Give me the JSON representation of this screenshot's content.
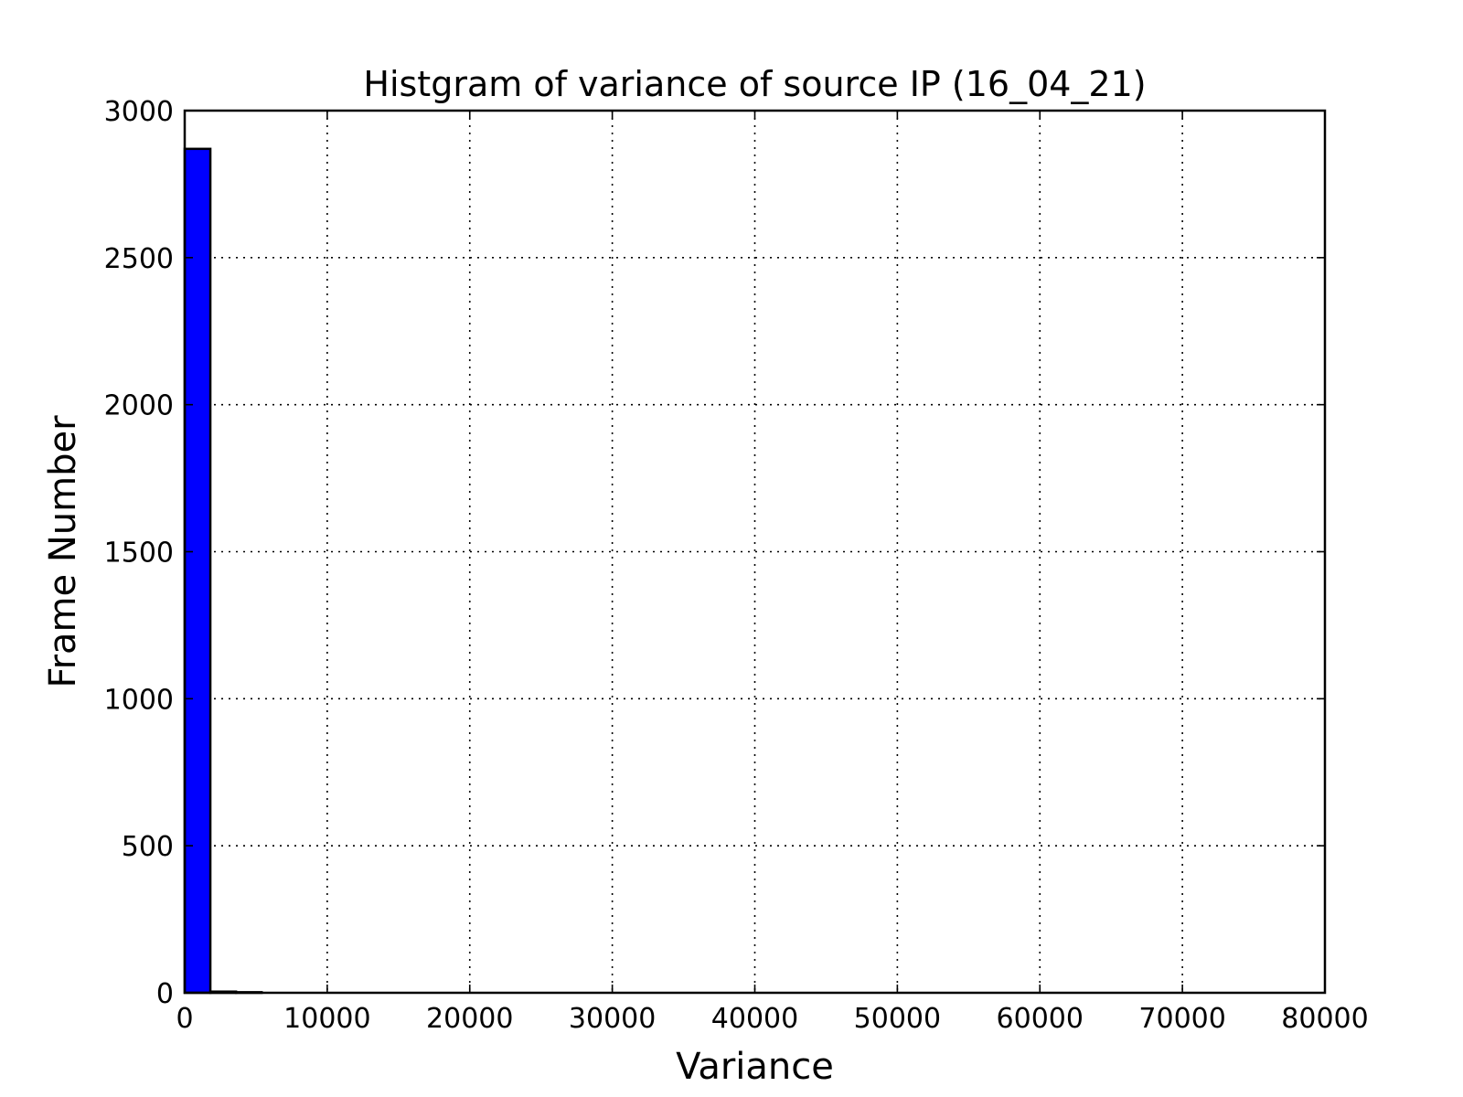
{
  "chart_data": {
    "type": "bar",
    "title": "Histgram of variance of source IP (16_04_21)",
    "xlabel": "Variance",
    "ylabel": "Frame Number",
    "xlim": [
      0,
      80000
    ],
    "ylim": [
      0,
      3000
    ],
    "xticks": [
      0,
      10000,
      20000,
      30000,
      40000,
      50000,
      60000,
      70000,
      80000
    ],
    "xtick_labels": [
      "0",
      "10000",
      "20000",
      "30000",
      "40000",
      "50000",
      "60000",
      "70000",
      "80000"
    ],
    "yticks": [
      0,
      500,
      1000,
      1500,
      2000,
      2500,
      3000
    ],
    "ytick_labels": [
      "0",
      "500",
      "1000",
      "1500",
      "2000",
      "2500",
      "3000"
    ],
    "grid": true,
    "bar_color": "#0000ff",
    "bins": [
      {
        "x0": 0,
        "x1": 1800,
        "value": 2870
      },
      {
        "x0": 1800,
        "x1": 3600,
        "value": 4
      },
      {
        "x0": 3600,
        "x1": 5400,
        "value": 2
      }
    ]
  }
}
